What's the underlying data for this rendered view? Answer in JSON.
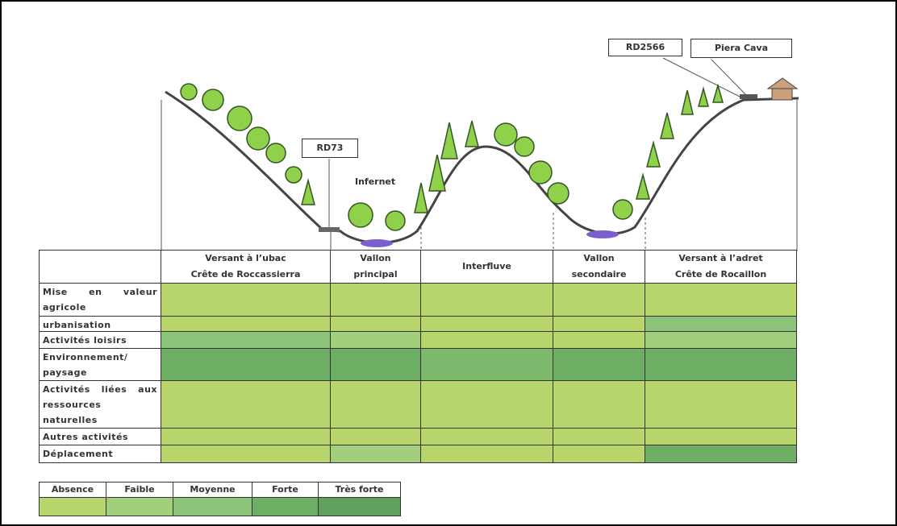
{
  "labels": {
    "rd73": "RD73",
    "infernet": "Infernet",
    "rd2566": "RD2566",
    "piera_cava": "Piera Cava"
  },
  "table": {
    "columns": [
      [
        "Versant à l’ubac",
        "Crête de Roccassierra"
      ],
      [
        "Vallon",
        "principal"
      ],
      [
        "Interfluve"
      ],
      [
        "Vallon",
        "secondaire"
      ],
      [
        "Versant à l’adret",
        "Crête de Rocaillon"
      ]
    ],
    "rows": [
      {
        "label": "Mise en valeur agricole",
        "colors": [
          "#b8d56c",
          "#b8d56c",
          "#b8d56c",
          "#b8d56c",
          "#b8d56c"
        ]
      },
      {
        "label": "urbanisation",
        "colors": [
          "#b8d56c",
          "#b8d56c",
          "#b8d56c",
          "#b8d56c",
          "#8cc47a"
        ]
      },
      {
        "label": "Activités loisirs",
        "colors": [
          "#8cc47a",
          "#a3cf7c",
          "#b8d56c",
          "#b8d56c",
          "#a3cf7c"
        ]
      },
      {
        "label": "Environnement/ paysage",
        "colors": [
          "#6fae65",
          "#6fae65",
          "#7cb96c",
          "#6fae65",
          "#6fae65"
        ]
      },
      {
        "label": "Activités liées aux ressources naturelles",
        "colors": [
          "#b8d56c",
          "#b8d56c",
          "#b8d56c",
          "#b8d56c",
          "#b8d56c"
        ]
      },
      {
        "label": "Autres activités",
        "colors": [
          "#b8d56c",
          "#b8d56c",
          "#b8d56c",
          "#b8d56c",
          "#b8d56c"
        ]
      },
      {
        "label": "Déplacement",
        "colors": [
          "#b8d56c",
          "#a3cf7c",
          "#b8d56c",
          "#b8d56c",
          "#6fae65"
        ]
      }
    ]
  },
  "legend": [
    {
      "label": "Absence",
      "color": "#b8d56c"
    },
    {
      "label": "Faible",
      "color": "#a3cf7c"
    },
    {
      "label": "Moyenne",
      "color": "#8cc47a"
    },
    {
      "label": "Forte",
      "color": "#6fae65"
    },
    {
      "label": "Très forte",
      "color": "#62a060"
    }
  ]
}
